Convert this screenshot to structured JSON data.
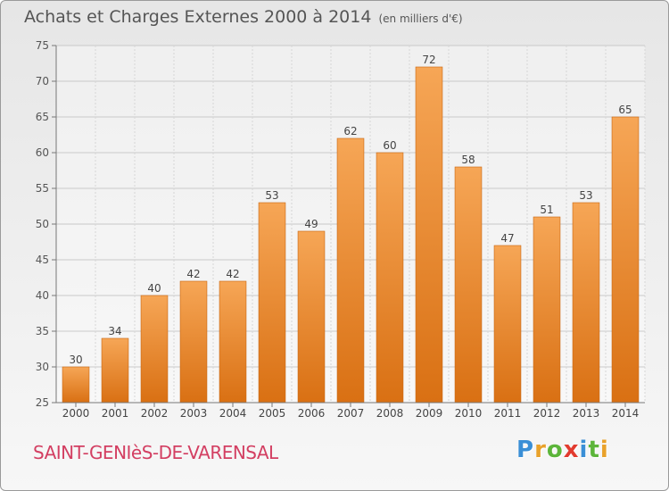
{
  "header": {
    "title": "Achats et Charges Externes 2000 à 2014",
    "unit": "(en milliers d'€)"
  },
  "footer": {
    "commune": "SAINT-GENIèS-DE-VARENSAL",
    "logo_letters": [
      "P",
      "r",
      "o",
      "x",
      "i",
      "t",
      "i"
    ],
    "logo_colors": [
      "#3a8fd6",
      "#e9a22b",
      "#5cb53a",
      "#e23b2f",
      "#3a8fd6",
      "#5cb53a",
      "#e9a22b"
    ]
  },
  "chart_data": {
    "type": "bar",
    "title": "Achats et Charges Externes 2000 à 2014",
    "subtitle": "(en milliers d'€)",
    "categories": [
      "2000",
      "2001",
      "2002",
      "2003",
      "2004",
      "2005",
      "2006",
      "2007",
      "2008",
      "2009",
      "2010",
      "2011",
      "2012",
      "2013",
      "2014"
    ],
    "values": [
      30,
      34,
      40,
      42,
      42,
      53,
      49,
      62,
      60,
      72,
      58,
      47,
      51,
      53,
      65
    ],
    "xlabel": "",
    "ylabel": "",
    "ylim": [
      25,
      75
    ],
    "yticks": [
      25,
      30,
      35,
      40,
      45,
      50,
      55,
      60,
      65,
      70,
      75
    ],
    "grid": true,
    "bar_color_top": "#f6a656",
    "bar_color_bottom": "#d97013"
  }
}
